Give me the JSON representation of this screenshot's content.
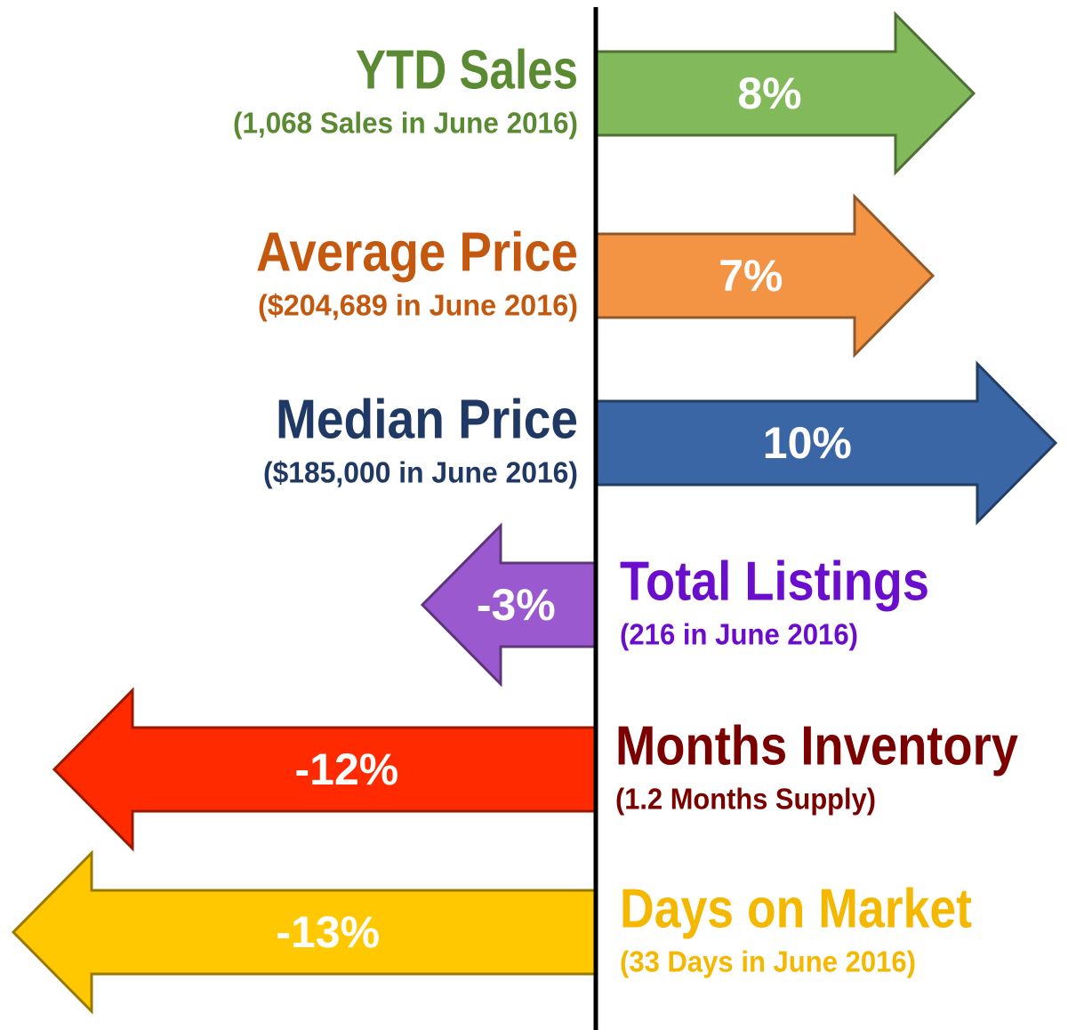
{
  "chart_data": {
    "type": "arrow",
    "categories": [
      "YTD Sales",
      "Average Price",
      "Median Price",
      "Total Listings",
      "Months Inventory",
      "Days on Market"
    ],
    "subtitles": [
      "(1,068 Sales in June 2016)",
      "($204,689 in June 2016)",
      "($185,000 in June 2016)",
      "(216 in June 2016)",
      "(1.2 Months Supply)",
      "(33 Days in June 2016)"
    ],
    "values": [
      8,
      7,
      10,
      -3,
      -12,
      -13
    ],
    "value_labels": [
      "8%",
      "7%",
      "10%",
      "-3%",
      "-12%",
      "-13%"
    ],
    "colors": [
      "#82b95a",
      "#f29444",
      "#3a66a6",
      "#9b59d0",
      "#ff2a00",
      "#ffc800"
    ],
    "text_colors": [
      "#5a8a32",
      "#c5580f",
      "#1f3864",
      "#6a0dcc",
      "#7b0000",
      "#f5b800"
    ]
  }
}
